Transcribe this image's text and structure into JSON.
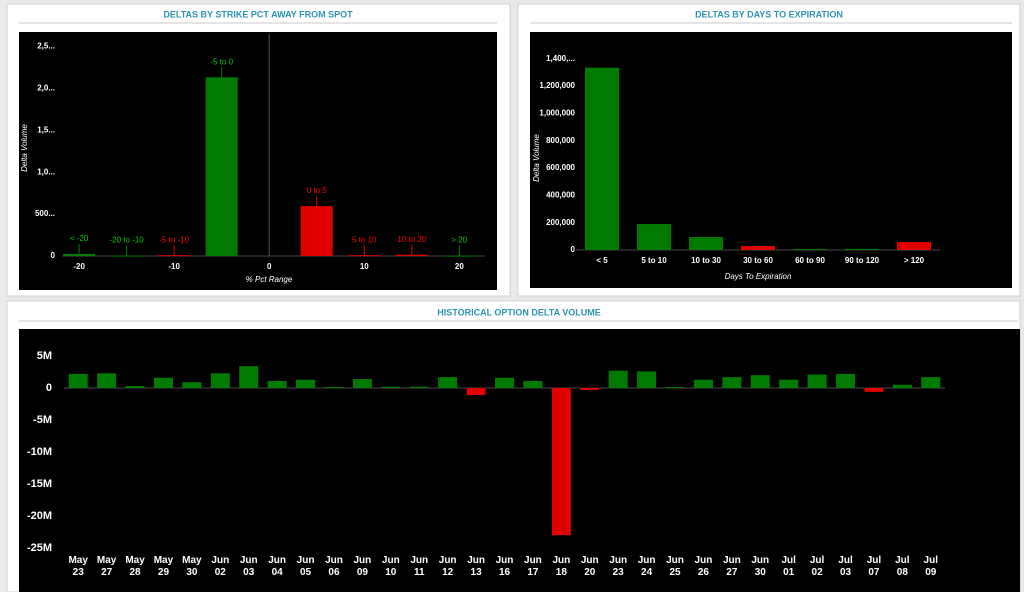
{
  "chart_data": [
    {
      "type": "bar",
      "title": "DELTAS BY STRIKE PCT AWAY FROM SPOT",
      "x_label": "% Pct Range",
      "y_label": "Delta Volume",
      "categories": [
        "< -20",
        "-20 to -10",
        "-5 to -10",
        "-5 to 0",
        "0 to 5",
        "5 to 10",
        "10 to 20",
        "> 20"
      ],
      "x": [
        -20,
        -15,
        -10,
        -5,
        5,
        10,
        15,
        20
      ],
      "values": [
        25000,
        5000,
        10000,
        2131000,
        595000,
        10000,
        15000,
        5000
      ],
      "colors": [
        "#007a00",
        "#007a00",
        "#e00000",
        "#007a00",
        "#e00000",
        "#e00000",
        "#e00000",
        "#007a00"
      ],
      "xlim": [
        -21.8,
        22.7
      ],
      "xticks": [
        -20,
        -10,
        0,
        10,
        20
      ],
      "ylim": [
        0,
        2600000
      ],
      "yticks": [
        0,
        {
          "value": 500000,
          "label": "500..."
        },
        {
          "value": 1000000,
          "label": "1,0..."
        },
        {
          "value": 1500000,
          "label": "1,5..."
        },
        {
          "value": 2000000,
          "label": "2,0..."
        },
        {
          "value": 2500000,
          "label": "2,5..."
        }
      ]
    },
    {
      "type": "bar",
      "title": "DELTAS BY DAYS TO EXPIRATION",
      "x_label": "Days To Expiration",
      "y_label": "Delta Volume",
      "categories": [
        "< 5",
        "5 to 10",
        "10 to 30",
        "30 to 60",
        "60 to 90",
        "90 to 120",
        "> 120"
      ],
      "values": [
        1334000,
        190000,
        95000,
        29000,
        7000,
        8000,
        58000
      ],
      "colors": [
        "#007a00",
        "#007a00",
        "#007a00",
        "#e00000",
        "#007a00",
        "#007a00",
        "#e00000"
      ],
      "ylim": [
        0,
        1500000
      ],
      "yticks": [
        0,
        {
          "value": 200000,
          "label": "200,000"
        },
        {
          "value": 400000,
          "label": "400,000"
        },
        {
          "value": 600000,
          "label": "600,000"
        },
        {
          "value": 800000,
          "label": "800,000"
        },
        {
          "value": 1000000,
          "label": "1,000,000"
        },
        {
          "value": 1200000,
          "label": "1,200,000"
        },
        {
          "value": 1400000,
          "label": "1,400,..."
        }
      ]
    },
    {
      "type": "bar",
      "title": "HISTORICAL OPTION DELTA VOLUME",
      "categories": [
        "May 23",
        "May 27",
        "May 28",
        "May 29",
        "May 30",
        "Jun 02",
        "Jun 03",
        "Jun 04",
        "Jun 05",
        "Jun 06",
        "Jun 09",
        "Jun 10",
        "Jun 11",
        "Jun 12",
        "Jun 13",
        "Jun 16",
        "Jun 17",
        "Jun 18",
        "Jun 20",
        "Jun 23",
        "Jun 24",
        "Jun 25",
        "Jun 26",
        "Jun 27",
        "Jun 30",
        "Jul 01",
        "Jul 02",
        "Jul 03",
        "Jul 07",
        "Jul 08",
        "Jul 09"
      ],
      "values": [
        2200000,
        2300000,
        300000,
        1600000,
        900000,
        2300000,
        3400000,
        1100000,
        1300000,
        150000,
        1400000,
        200000,
        200000,
        1700000,
        -1100000,
        1600000,
        1100000,
        -23000000,
        -300000,
        2700000,
        2600000,
        150000,
        1300000,
        1700000,
        2000000,
        1300000,
        2100000,
        2200000,
        -600000,
        500000,
        1700000
      ],
      "color": "#007a00",
      "negative_color": "#e00000",
      "ylim": [
        -26000000,
        8000000
      ],
      "yticks": [
        {
          "value": -25000000,
          "label": "-25M"
        },
        {
          "value": -20000000,
          "label": "-20M"
        },
        {
          "value": -15000000,
          "label": "-15M"
        },
        {
          "value": -10000000,
          "label": "-10M"
        },
        {
          "value": -5000000,
          "label": "-5M"
        },
        0,
        {
          "value": 5000000,
          "label": "5M"
        }
      ]
    }
  ]
}
